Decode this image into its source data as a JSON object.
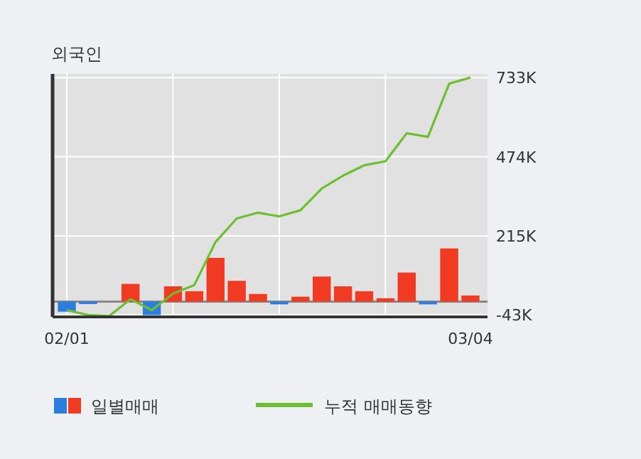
{
  "chart_data": {
    "type": "bar",
    "title": "외국인",
    "categories": [
      "02/01",
      null,
      null,
      null,
      null,
      null,
      null,
      null,
      null,
      null,
      null,
      null,
      null,
      null,
      null,
      null,
      null,
      null,
      null,
      "03/04"
    ],
    "series": [
      {
        "name": "일별매매",
        "colors": [
          "#2b7de0",
          "#2b7de0",
          "#f03a22",
          "#f03a22",
          "#2b7de0",
          "#f03a22",
          "#f03a22",
          "#f03a22",
          "#f03a22",
          "#f03a22",
          "#2b7de0",
          "#f03a22",
          "#f03a22",
          "#f03a22",
          "#f03a22",
          "#f03a22",
          "#f03a22",
          "#2b7de0",
          "#f03a22",
          "#f03a22"
        ],
        "values": [
          -33,
          -8,
          0,
          58,
          -44,
          50,
          34,
          143,
          68,
          25,
          -9,
          16,
          82,
          50,
          34,
          11,
          95,
          -9,
          174,
          20
        ]
      },
      {
        "name": "누적 매매동향",
        "type": "line",
        "color": "#6cbf2e",
        "values": [
          -28,
          -44,
          -47,
          8,
          -28,
          26,
          54,
          195,
          272,
          291,
          279,
          299,
          370,
          412,
          446,
          459,
          551,
          539,
          713,
          733
        ]
      }
    ],
    "ylim": [
      -50,
      745
    ],
    "yticks": [
      {
        "value": -43,
        "label": "-43K"
      },
      {
        "value": 215,
        "label": "215K"
      },
      {
        "value": 474,
        "label": "474K"
      },
      {
        "value": 733,
        "label": "733K"
      }
    ],
    "grid": true,
    "legend": "bottom",
    "marker": "none",
    "line_style": "solid"
  }
}
